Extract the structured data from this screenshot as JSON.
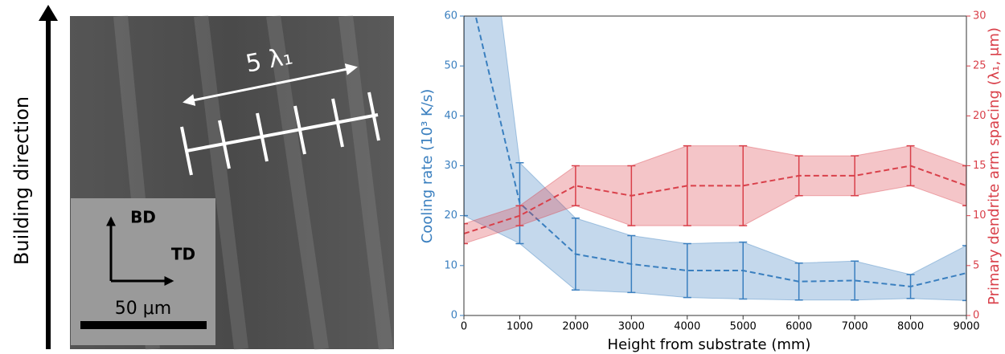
{
  "micrograph": {
    "direction_label": "Building direction",
    "spacing_label": "5 λ₁",
    "bd_label": "BD",
    "td_label": "TD",
    "scale_label": "50 μm"
  },
  "chart_data": {
    "type": "line",
    "x_label": "Height from substrate (mm)",
    "y_label": "Cooling rate (10³ K/s)",
    "y2_label": "Primary dendrite arm spacing (λ₁, μm)",
    "x": [
      0,
      1000,
      2000,
      3000,
      4000,
      5000,
      6000,
      7000,
      8000,
      9000
    ],
    "xlim": [
      0,
      9000
    ],
    "xticks": [
      0,
      1000,
      2000,
      3000,
      4000,
      5000,
      6000,
      7000,
      8000,
      9000
    ],
    "ylim": [
      0,
      60
    ],
    "yticks": [
      0,
      10,
      20,
      30,
      40,
      50,
      60
    ],
    "y2lim": [
      0,
      30
    ],
    "y2ticks": [
      0,
      5,
      10,
      15,
      20,
      25,
      30
    ],
    "series": [
      {
        "color": "#3a7fbf",
        "axis": "y",
        "values": [
          70,
          22.5,
          12.3,
          10.3,
          9.0,
          9.0,
          6.8,
          7.0,
          5.8,
          8.5
        ],
        "errors": [
          50,
          8.1,
          7.2,
          5.7,
          5.4,
          5.7,
          3.7,
          3.9,
          2.4,
          5.5
        ]
      },
      {
        "color": "#d9404a",
        "axis": "y2",
        "values": [
          8.2,
          10,
          13,
          12,
          13,
          13,
          14,
          14,
          15,
          13
        ],
        "errors": [
          1,
          1,
          2,
          3,
          4,
          4,
          2,
          2,
          2,
          2
        ]
      }
    ]
  }
}
